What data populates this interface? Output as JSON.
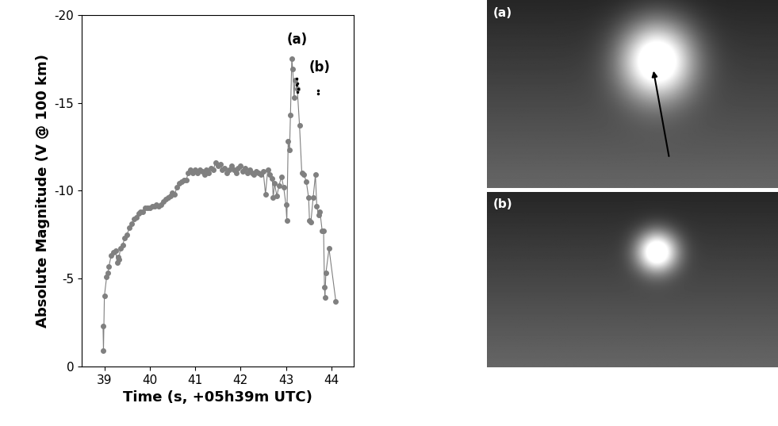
{
  "chart_data": {
    "type": "line",
    "xlabel": "Time (s, +05h39m UTC)",
    "ylabel": "Absolute Magnitude (V @ 100 km)",
    "xlim": [
      38.5,
      44.5
    ],
    "xticks": [
      39,
      40,
      41,
      42,
      43,
      44
    ],
    "ylim": [
      0,
      -20
    ],
    "yticks": [
      -20,
      -15,
      -10,
      -5,
      0
    ],
    "grid": false,
    "series": [
      {
        "color": "#808080",
        "marker": "circle",
        "line_style": "solid",
        "x": [
          38.97,
          38.98,
          39.0,
          39.05,
          39.08,
          39.1,
          39.15,
          39.2,
          39.25,
          39.28,
          39.3,
          39.32,
          39.35,
          39.4,
          39.45,
          39.5,
          39.55,
          39.6,
          39.65,
          39.7,
          39.75,
          39.8,
          39.85,
          39.9,
          39.95,
          40.0,
          40.05,
          40.1,
          40.15,
          40.2,
          40.25,
          40.3,
          40.35,
          40.4,
          40.45,
          40.5,
          40.55,
          40.6,
          40.65,
          40.7,
          40.75,
          40.8,
          40.85,
          40.9,
          40.95,
          41.0,
          41.05,
          41.1,
          41.15,
          41.2,
          41.25,
          41.3,
          41.35,
          41.4,
          41.45,
          41.5,
          41.55,
          41.6,
          41.65,
          41.7,
          41.75,
          41.8,
          41.85,
          41.9,
          41.95,
          42.0,
          42.05,
          42.1,
          42.15,
          42.2,
          42.25,
          42.3,
          42.35,
          42.4,
          42.45,
          42.5,
          42.55,
          42.6,
          42.65,
          42.7,
          42.72,
          42.75,
          42.8,
          42.85,
          42.9,
          42.95,
          43.0,
          43.02,
          43.05,
          43.08,
          43.1,
          43.13,
          43.15,
          43.18,
          43.2,
          43.25,
          43.3,
          43.35,
          43.4,
          43.45,
          43.5,
          43.52,
          43.55,
          43.6,
          43.65,
          43.68,
          43.72,
          43.75,
          43.8,
          43.83,
          43.85,
          43.86,
          43.88,
          43.95,
          44.1
        ],
        "values": [
          -2.3,
          -0.9,
          -4.0,
          -5.1,
          -5.3,
          -5.7,
          -6.3,
          -6.5,
          -6.6,
          -5.9,
          -6.2,
          -6.1,
          -6.7,
          -6.9,
          -7.3,
          -7.5,
          -7.9,
          -8.1,
          -8.4,
          -8.5,
          -8.7,
          -8.8,
          -8.8,
          -9.0,
          -9.0,
          -9.0,
          -9.1,
          -9.1,
          -9.2,
          -9.1,
          -9.2,
          -9.4,
          -9.5,
          -9.6,
          -9.7,
          -9.9,
          -9.8,
          -10.2,
          -10.4,
          -10.5,
          -10.6,
          -10.6,
          -11.0,
          -11.2,
          -11.0,
          -11.2,
          -11.0,
          -11.2,
          -11.1,
          -10.9,
          -11.2,
          -11.0,
          -11.3,
          -11.2,
          -11.6,
          -11.4,
          -11.5,
          -11.2,
          -11.3,
          -11.0,
          -11.2,
          -11.4,
          -11.2,
          -11.0,
          -11.3,
          -11.4,
          -11.1,
          -11.3,
          -11.0,
          -11.2,
          -11.0,
          -10.9,
          -11.1,
          -11.0,
          -10.9,
          -11.1,
          -9.8,
          -11.2,
          -10.9,
          -10.7,
          -9.6,
          -10.4,
          -9.7,
          -10.3,
          -10.8,
          -10.2,
          -9.2,
          -8.3,
          -12.8,
          -12.3,
          -14.3,
          -17.5,
          -16.9,
          -15.3,
          -16.3,
          -15.8,
          -13.7,
          -11.0,
          -10.9,
          -10.5,
          -9.6,
          -8.3,
          -8.2,
          -9.6,
          -10.9,
          -9.1,
          -8.6,
          -8.8,
          -7.7,
          -7.7,
          -4.5,
          -3.9,
          -5.3,
          -6.7,
          -3.7
        ]
      },
      {
        "color": "#000000",
        "marker": "dot",
        "line_style": "none",
        "x": [
          43.23,
          43.24,
          43.25,
          43.26,
          43.27,
          43.7,
          43.71
        ],
        "values": [
          -16.4,
          -16.0,
          -16.1,
          -15.6,
          -15.8,
          -15.7,
          -15.5
        ]
      }
    ],
    "annotations": [
      {
        "text": "(a)",
        "x": 43.25,
        "y": -18.6
      },
      {
        "text": "(b)",
        "x": 43.75,
        "y": -17.0
      }
    ],
    "panels": [
      {
        "label": "(a)"
      },
      {
        "label": "(b)"
      }
    ]
  }
}
